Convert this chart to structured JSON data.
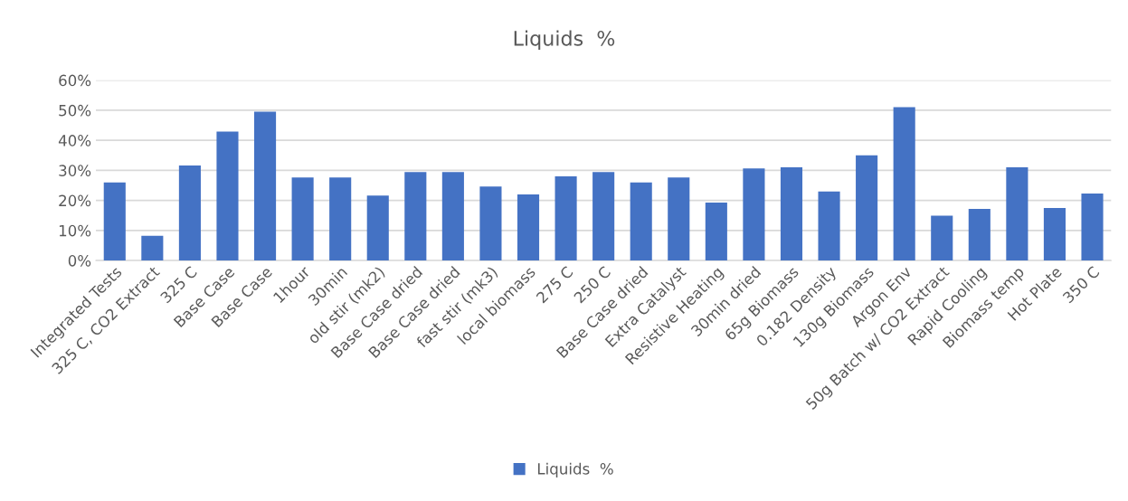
{
  "chart_data": {
    "type": "bar",
    "title": "Liquids  %",
    "categories": [
      "Integrated Tests",
      "325 C, CO2 Extract",
      "325 C",
      "Base Case",
      "Base Case",
      "1hour",
      "30min",
      "old stir (mk2)",
      "Base Case dried",
      "Base Case dried",
      "fast stir (mk3)",
      "local biomass",
      "275 C",
      "250 C",
      "Base Case dried",
      "Extra Catalyst",
      "Resistive Heating",
      "30min dried",
      "65g Biomass",
      "0.182 Density",
      "130g Biomass",
      "Argon Env",
      "50g Batch w/ CO2 Extract",
      "Rapid Cooling",
      "Biomass temp",
      "Hot Plate",
      "350 C"
    ],
    "series": [
      {
        "name": "Liquids  %",
        "color": "#4472c4",
        "values": [
          26.0,
          8.2,
          31.6,
          42.9,
          49.5,
          27.6,
          27.6,
          21.6,
          29.4,
          29.4,
          24.6,
          22.0,
          28.0,
          29.4,
          26.0,
          27.6,
          19.3,
          30.6,
          31.0,
          23.0,
          35.0,
          51.0,
          14.9,
          17.2,
          31.0,
          17.5,
          22.3
        ]
      }
    ],
    "ylim": [
      0,
      60
    ],
    "yticks": [
      {
        "value": 0,
        "label": "0%"
      },
      {
        "value": 10,
        "label": "10%"
      },
      {
        "value": 20,
        "label": "20%"
      },
      {
        "value": 30,
        "label": "30%"
      },
      {
        "value": 40,
        "label": "40%"
      },
      {
        "value": 50,
        "label": "50%"
      },
      {
        "value": 60,
        "label": "60%"
      }
    ],
    "grid": "y",
    "legend": "bottom"
  }
}
